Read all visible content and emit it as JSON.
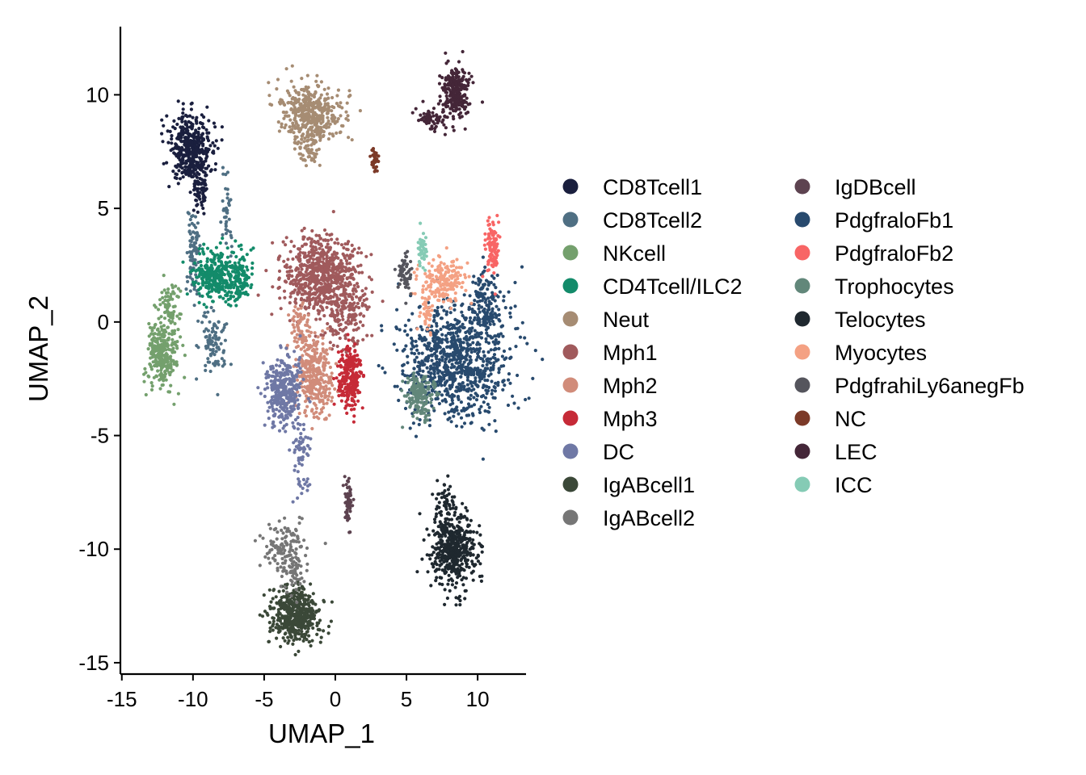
{
  "chart_data": {
    "type": "scatter",
    "xlabel": "UMAP_1",
    "ylabel": "UMAP_2",
    "xlim": [
      -15.1,
      13.4
    ],
    "ylim": [
      -15.5,
      13.0
    ],
    "xticks": [
      -15,
      -10,
      -5,
      0,
      5,
      10
    ],
    "yticks": [
      -15,
      -10,
      -5,
      0,
      5,
      10
    ],
    "xtick_labels": [
      "-15",
      "-10",
      "-5",
      "0",
      "5",
      "10"
    ],
    "ytick_labels": [
      "-15",
      "-10",
      "-5",
      "0",
      "5",
      "10"
    ],
    "grid": false,
    "legend_position": "right",
    "series": [
      {
        "name": "CD8Tcell1",
        "color": "#1a1f3e",
        "clusters": [
          {
            "cx": -10.2,
            "cy": 7.6,
            "sx": 0.9,
            "sy": 0.9,
            "n": 420
          },
          {
            "cx": -9.4,
            "cy": 5.8,
            "sx": 0.3,
            "sy": 0.5,
            "n": 60
          }
        ]
      },
      {
        "name": "CD8Tcell2",
        "color": "#4f6f83",
        "clusters": [
          {
            "cx": -10.0,
            "cy": 3.2,
            "sx": 0.25,
            "sy": 1.2,
            "n": 90
          },
          {
            "cx": -8.6,
            "cy": -1.0,
            "sx": 0.6,
            "sy": 0.9,
            "n": 90
          },
          {
            "cx": -7.6,
            "cy": 4.8,
            "sx": 0.25,
            "sy": 0.9,
            "n": 40
          }
        ]
      },
      {
        "name": "NKcell",
        "color": "#74a06d",
        "clusters": [
          {
            "cx": -12.2,
            "cy": -1.4,
            "sx": 0.6,
            "sy": 0.9,
            "n": 300
          },
          {
            "cx": -11.6,
            "cy": 0.8,
            "sx": 0.4,
            "sy": 0.6,
            "n": 60
          }
        ]
      },
      {
        "name": "CD4Tcell/ILC2",
        "color": "#138b6a",
        "clusters": [
          {
            "cx": -8.3,
            "cy": 2.0,
            "sx": 0.9,
            "sy": 0.7,
            "n": 320
          },
          {
            "cx": -6.6,
            "cy": 1.9,
            "sx": 0.5,
            "sy": 0.7,
            "n": 100
          }
        ]
      },
      {
        "name": "Neut",
        "color": "#a68c73",
        "clusters": [
          {
            "cx": -1.7,
            "cy": 9.2,
            "sx": 1.3,
            "sy": 0.7,
            "n": 420
          },
          {
            "cx": -1.9,
            "cy": 7.6,
            "sx": 0.6,
            "sy": 0.5,
            "n": 60
          }
        ]
      },
      {
        "name": "Mph1",
        "color": "#a05a5c",
        "clusters": [
          {
            "cx": -1.0,
            "cy": 2.0,
            "sx": 1.5,
            "sy": 1.0,
            "n": 650
          },
          {
            "cx": 0.8,
            "cy": 0.8,
            "sx": 0.9,
            "sy": 1.1,
            "n": 200
          }
        ]
      },
      {
        "name": "Mph2",
        "color": "#d18c7a",
        "clusters": [
          {
            "cx": -1.5,
            "cy": -2.4,
            "sx": 0.8,
            "sy": 1.0,
            "n": 330
          },
          {
            "cx": -2.4,
            "cy": -0.3,
            "sx": 0.4,
            "sy": 0.6,
            "n": 60
          }
        ]
      },
      {
        "name": "Mph3",
        "color": "#c62a37",
        "clusters": [
          {
            "cx": 1.0,
            "cy": -2.5,
            "sx": 0.5,
            "sy": 0.9,
            "n": 230
          }
        ]
      },
      {
        "name": "DC",
        "color": "#6f78a5",
        "clusters": [
          {
            "cx": -3.6,
            "cy": -3.0,
            "sx": 0.8,
            "sy": 0.9,
            "n": 340
          },
          {
            "cx": -2.4,
            "cy": -5.8,
            "sx": 0.35,
            "sy": 0.9,
            "n": 70
          }
        ]
      },
      {
        "name": "IgABcell1",
        "color": "#3b4838",
        "clusters": [
          {
            "cx": -2.8,
            "cy": -12.9,
            "sx": 1.0,
            "sy": 0.7,
            "n": 500
          }
        ]
      },
      {
        "name": "IgABcell2",
        "color": "#767676",
        "clusters": [
          {
            "cx": -3.6,
            "cy": -9.9,
            "sx": 0.9,
            "sy": 0.7,
            "n": 120
          },
          {
            "cx": -3.0,
            "cy": -11.0,
            "sx": 0.5,
            "sy": 0.5,
            "n": 50
          }
        ]
      },
      {
        "name": "IgDBcell",
        "color": "#5d4350",
        "clusters": [
          {
            "cx": 0.9,
            "cy": -7.9,
            "sx": 0.15,
            "sy": 0.6,
            "n": 50
          }
        ]
      },
      {
        "name": "PdgfraloFb1",
        "color": "#284a6e",
        "clusters": [
          {
            "cx": 8.5,
            "cy": -1.8,
            "sx": 2.1,
            "sy": 1.5,
            "n": 900
          },
          {
            "cx": 10.6,
            "cy": 0.8,
            "sx": 0.7,
            "sy": 1.0,
            "n": 150
          }
        ]
      },
      {
        "name": "PdgfraloFb2",
        "color": "#f86565",
        "clusters": [
          {
            "cx": 11.1,
            "cy": 3.4,
            "sx": 0.3,
            "sy": 0.7,
            "n": 90
          }
        ]
      },
      {
        "name": "Trophocytes",
        "color": "#62877a",
        "clusters": [
          {
            "cx": 5.9,
            "cy": -3.3,
            "sx": 0.6,
            "sy": 0.6,
            "n": 160
          }
        ]
      },
      {
        "name": "Telocytes",
        "color": "#1f282f",
        "clusters": [
          {
            "cx": 8.3,
            "cy": -10.0,
            "sx": 0.9,
            "sy": 1.0,
            "n": 480
          },
          {
            "cx": 7.8,
            "cy": -8.0,
            "sx": 0.4,
            "sy": 0.6,
            "n": 50
          }
        ]
      },
      {
        "name": "Myocytes",
        "color": "#f4a183",
        "clusters": [
          {
            "cx": 7.6,
            "cy": 1.8,
            "sx": 0.9,
            "sy": 0.6,
            "n": 170
          },
          {
            "cx": 6.4,
            "cy": 0.5,
            "sx": 0.3,
            "sy": 0.6,
            "n": 40
          }
        ]
      },
      {
        "name": "PdgfrahiLy6anegFb",
        "color": "#55555d",
        "clusters": [
          {
            "cx": 4.9,
            "cy": 2.2,
            "sx": 0.3,
            "sy": 0.6,
            "n": 60
          }
        ]
      },
      {
        "name": "NC",
        "color": "#7c3a28",
        "clusters": [
          {
            "cx": 2.8,
            "cy": 7.1,
            "sx": 0.15,
            "sy": 0.3,
            "n": 30
          }
        ]
      },
      {
        "name": "LEC",
        "color": "#442638",
        "clusters": [
          {
            "cx": 8.5,
            "cy": 10.2,
            "sx": 0.6,
            "sy": 0.7,
            "n": 260
          },
          {
            "cx": 6.7,
            "cy": 9.0,
            "sx": 0.7,
            "sy": 0.25,
            "n": 60
          }
        ]
      },
      {
        "name": "ICC",
        "color": "#85cbb5",
        "clusters": [
          {
            "cx": 6.1,
            "cy": 3.2,
            "sx": 0.2,
            "sy": 0.6,
            "n": 40
          }
        ]
      }
    ]
  }
}
